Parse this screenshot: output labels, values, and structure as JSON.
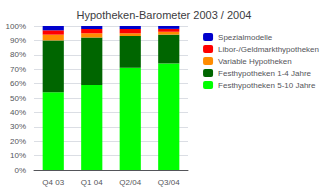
{
  "chart_data": {
    "type": "bar",
    "stacked": true,
    "title": "Hypotheken-Barometer 2003 / 2004",
    "categories": [
      "Q4 03",
      "Q1 04",
      "Q2/04",
      "Q3/04"
    ],
    "series": [
      {
        "name": "Festhypotheken 5-10 Jahre",
        "color": "#00FF00",
        "values": [
          54,
          59,
          71,
          74
        ]
      },
      {
        "name": "Festhypotheken 1-4 Jahre",
        "color": "#006600",
        "values": [
          36,
          33,
          22,
          20
        ]
      },
      {
        "name": "Variable Hypotheken",
        "color": "#FF8C00",
        "values": [
          4,
          3,
          2,
          2
        ]
      },
      {
        "name": "Libor-/Geldmarkthypotheken",
        "color": "#FF0000",
        "values": [
          3,
          3,
          3,
          2
        ]
      },
      {
        "name": "Spezialmodelle",
        "color": "#0000CC",
        "values": [
          3,
          2,
          2,
          2
        ]
      }
    ],
    "ylim": [
      0,
      100
    ],
    "yticks": [
      {
        "value": 0,
        "label": "0%"
      },
      {
        "value": 10,
        "label": "10%"
      },
      {
        "value": 20,
        "label": "20%"
      },
      {
        "value": 30,
        "label": "30%"
      },
      {
        "value": 40,
        "label": "40%"
      },
      {
        "value": 50,
        "label": "50%"
      },
      {
        "value": 60,
        "label": "60%"
      },
      {
        "value": 70,
        "label": "70%"
      },
      {
        "value": 80,
        "label": "80%"
      },
      {
        "value": 90,
        "label": "90%"
      },
      {
        "value": 100,
        "label": "100%"
      }
    ],
    "grid": true,
    "legend": "right"
  }
}
